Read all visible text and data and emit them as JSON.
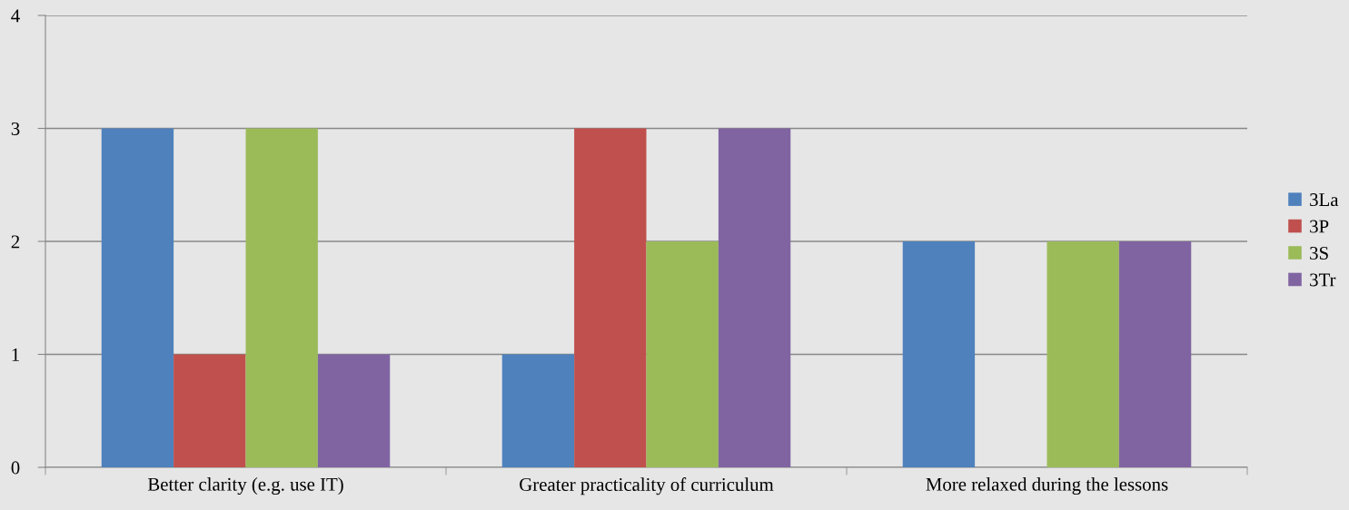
{
  "chart_data": {
    "type": "bar",
    "categories": [
      "Better clarity (e.g. use IT)",
      "Greater practicality of curriculum",
      "More relaxed during the lessons"
    ],
    "series": [
      {
        "name": "3La",
        "color": "#4f81bd",
        "values": [
          3,
          1,
          2
        ]
      },
      {
        "name": "3P",
        "color": "#c0504d",
        "values": [
          1,
          3,
          0
        ]
      },
      {
        "name": "3S",
        "color": "#9bbb59",
        "values": [
          3,
          2,
          2
        ]
      },
      {
        "name": "3Tr",
        "color": "#8064a2",
        "values": [
          1,
          3,
          2
        ]
      }
    ],
    "ylim": [
      0,
      4
    ],
    "yticks": [
      0,
      1,
      2,
      3,
      4
    ],
    "grid": "y",
    "legend": "right"
  }
}
